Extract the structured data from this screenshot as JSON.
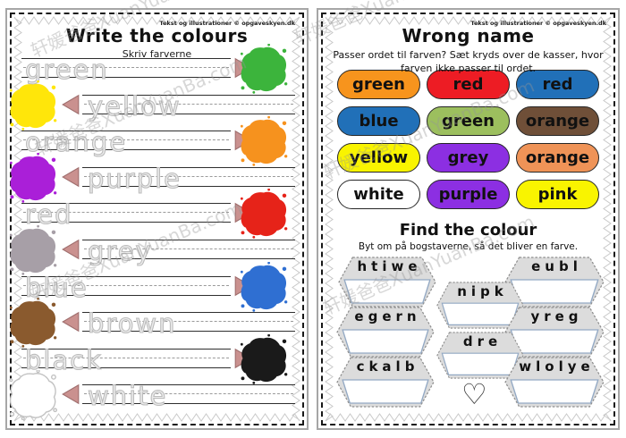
{
  "watermark": {
    "text": "轩媛爸爸XuanYuanBa.com"
  },
  "left_page": {
    "copyright": "Tekst og illustrationer © opgaveskyen.dk",
    "title": "Write the colours",
    "subtitle": "Skriv farverne",
    "arrow_color": "#ca918f",
    "rows": [
      {
        "word": "green",
        "color": "#3cb43c",
        "splat_side": "right"
      },
      {
        "word": "yellow",
        "color": "#ffe60a",
        "splat_side": "left"
      },
      {
        "word": "orange",
        "color": "#f6921e",
        "splat_side": "right"
      },
      {
        "word": "purple",
        "color": "#aa1fd8",
        "splat_side": "left"
      },
      {
        "word": "red",
        "color": "#e62319",
        "splat_side": "right"
      },
      {
        "word": "grey",
        "color": "#a79fa7",
        "splat_side": "left"
      },
      {
        "word": "blue",
        "color": "#2f6fd2",
        "splat_side": "right"
      },
      {
        "word": "brown",
        "color": "#8a5a2e",
        "splat_side": "left"
      },
      {
        "word": "black",
        "color": "#1a1a1a",
        "splat_side": "right"
      },
      {
        "word": "white",
        "color": "#ffffff",
        "splat_side": "left"
      }
    ]
  },
  "right_page": {
    "copyright": "Tekst og illustrationer © opgaveskyen.dk",
    "title": "Wrong name",
    "instructions_line1": "Passer ordet til farven? Sæt kryds over de kasser, hvor",
    "instructions_line2": "farven ikke passer til ordet.",
    "ovals": [
      {
        "label": "green",
        "color": "#f7941d"
      },
      {
        "label": "red",
        "color": "#ed1c24"
      },
      {
        "label": "red",
        "color": "#2170b8"
      },
      {
        "label": "blue",
        "color": "#2170b8"
      },
      {
        "label": "green",
        "color": "#9cbf5e"
      },
      {
        "label": "orange",
        "color": "#6f4f38"
      },
      {
        "label": "yellow",
        "color": "#f9f400"
      },
      {
        "label": "grey",
        "color": "#8c2fe2"
      },
      {
        "label": "orange",
        "color": "#ef9357"
      },
      {
        "label": "white",
        "color": "#ffffff"
      },
      {
        "label": "purple",
        "color": "#8c2fe2"
      },
      {
        "label": "pink",
        "color": "#f9f400"
      }
    ],
    "find": {
      "title": "Find the colour",
      "subtitle": "Byt om på bogstaverne, så det bliver en farve.",
      "hexagons": [
        "htiwe",
        "eubl",
        "nipk",
        "egern",
        "yreg",
        "dre",
        "ckalb",
        "wlolye"
      ]
    },
    "heart_icon": "♡"
  }
}
